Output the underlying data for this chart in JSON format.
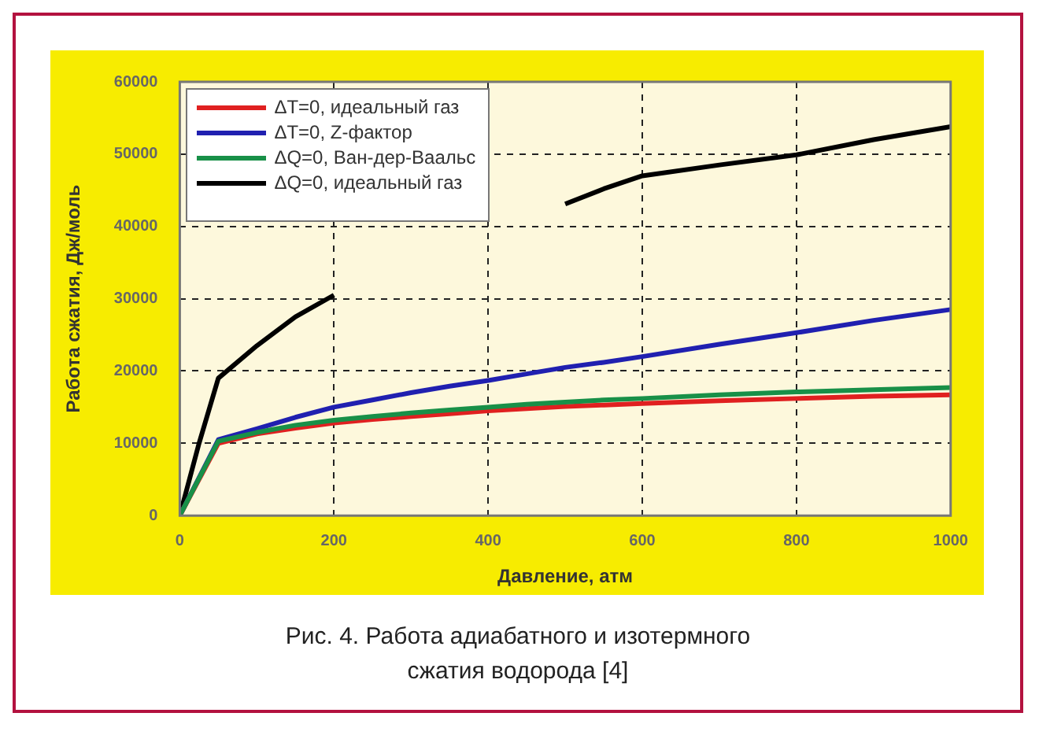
{
  "chart_data": {
    "type": "line",
    "xlabel": "Давление, атм",
    "ylabel": "Работа сжатия, Дж/моль",
    "x": [
      0,
      25,
      50,
      100,
      150,
      200,
      250,
      300,
      350,
      400,
      450,
      500,
      550,
      600,
      700,
      800,
      900,
      1000
    ],
    "series": [
      {
        "name": "ΔT=0, идеальный газ",
        "color": "#e02020",
        "x": [
          0,
          50,
          100,
          150,
          200,
          250,
          300,
          350,
          400,
          450,
          500,
          550,
          600,
          700,
          800,
          900,
          1000
        ],
        "values": [
          0,
          10000,
          11300,
          12100,
          12800,
          13300,
          13700,
          14100,
          14500,
          14800,
          15100,
          15300,
          15500,
          15900,
          16200,
          16500,
          16700
        ]
      },
      {
        "name": "ΔT=0, Z-фактор",
        "color": "#2020b0",
        "x": [
          0,
          50,
          100,
          150,
          200,
          250,
          300,
          350,
          400,
          450,
          500,
          550,
          600,
          700,
          800,
          900,
          1000
        ],
        "values": [
          0,
          10500,
          12000,
          13600,
          15000,
          16000,
          17000,
          17900,
          18700,
          19600,
          20500,
          21200,
          22000,
          23700,
          25300,
          27000,
          28500
        ]
      },
      {
        "name": "ΔQ=0, Ван-дер-Ваальс",
        "color": "#189048",
        "x": [
          0,
          50,
          100,
          150,
          200,
          250,
          300,
          350,
          400,
          450,
          500,
          550,
          600,
          700,
          800,
          900,
          1000
        ],
        "values": [
          0,
          10300,
          11500,
          12500,
          13200,
          13700,
          14200,
          14600,
          15000,
          15400,
          15700,
          16000,
          16200,
          16700,
          17100,
          17400,
          17700
        ]
      },
      {
        "name": "ΔQ=0, идеальный газ",
        "color": "#000000",
        "values": [
          0,
          10000,
          19000,
          23500,
          27500,
          30500,
          null,
          null,
          null,
          null,
          null,
          43100,
          45200,
          47000,
          48500,
          49900,
          52000,
          53800
        ]
      }
    ],
    "xlim": [
      0,
      1000
    ],
    "xticks": [
      0,
      200,
      400,
      600,
      800,
      1000
    ],
    "ylim": [
      0,
      60000
    ],
    "yticks": [
      0,
      10000,
      20000,
      30000,
      40000,
      50000,
      60000
    ],
    "grid": true,
    "legend": "top left",
    "marker": "none",
    "line_style": "solid",
    "annotations": [
      "Рис. 4. Работа адиабатного и изотермного сжатия водорода [4]"
    ]
  }
}
